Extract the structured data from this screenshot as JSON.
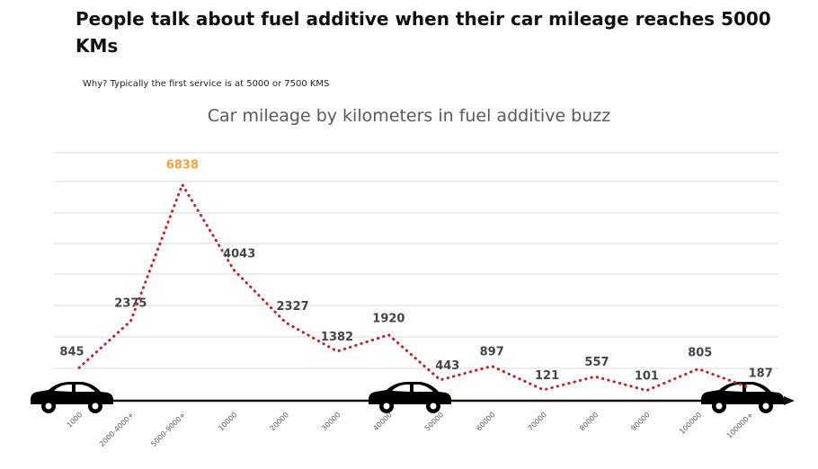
{
  "slide": {
    "headline": "People talk about fuel additive when their car mileage reaches 5000 KMs",
    "subheadline": "Why? Typically the first service is at 5000 or 7500 KMS"
  },
  "colors": {
    "line": "#c0262c",
    "peak_label": "#f4a13f",
    "label": "#444444",
    "grid": "#d9d9d9",
    "axis": "#111111",
    "car": "#000000"
  },
  "chart_data": {
    "type": "line",
    "title": "Car mileage by kilometers in fuel additive buzz",
    "xlabel": "",
    "ylabel": "",
    "categories": [
      "1000",
      "2000-4000+",
      "5000-9000+",
      "10000",
      "20000",
      "30000",
      "40000",
      "50000",
      "60000",
      "70000",
      "80000",
      "90000",
      "100000",
      "100000+"
    ],
    "series": [
      {
        "values": [
          845,
          2375,
          6838,
          4043,
          2327,
          1382,
          1920,
          443,
          897,
          121,
          557,
          101,
          805,
          187
        ],
        "labels": [
          "845",
          "2375",
          "6838",
          "4043",
          "2327",
          "1382",
          "1920",
          "443",
          "897",
          "121",
          "557",
          "101",
          "805",
          "187"
        ]
      }
    ],
    "ylim": [
      0,
      7000
    ],
    "line_style": "dotted",
    "grid": true,
    "legend": "none",
    "decorations": [
      "car-icon",
      "car-icon",
      "car-icon"
    ]
  }
}
